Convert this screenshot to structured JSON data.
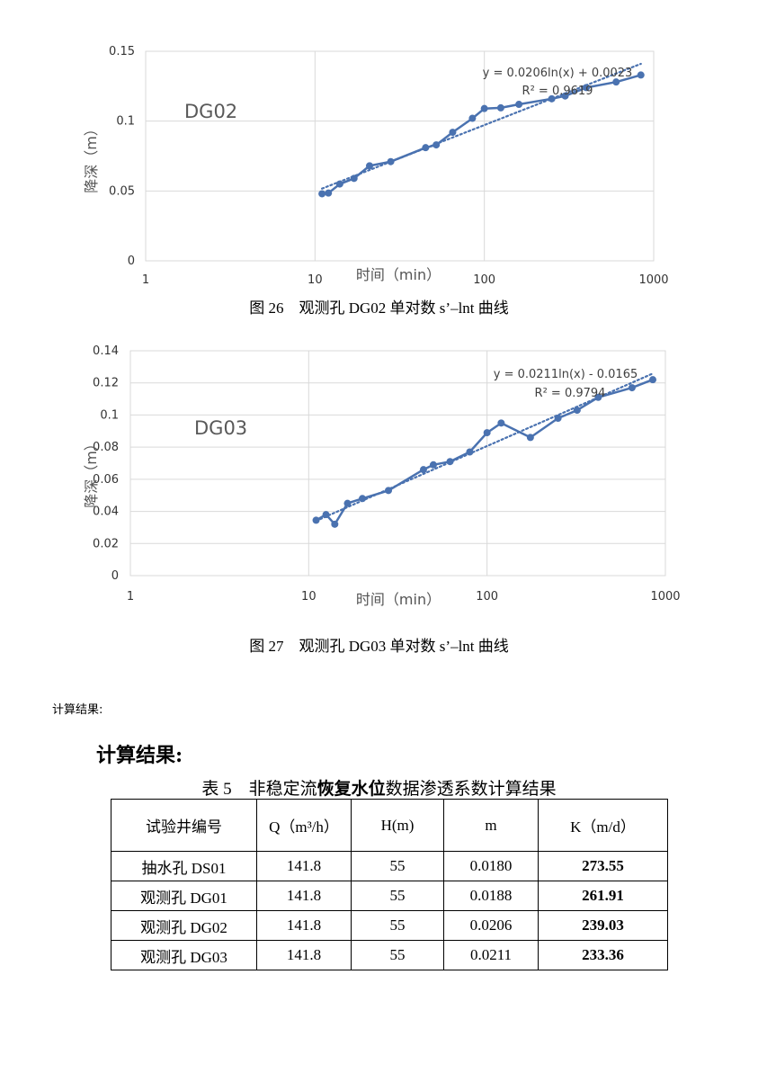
{
  "chart_data": [
    {
      "type": "scatter",
      "label": "DG02",
      "xlabel": "时间（min）",
      "ylabel": "降深（m）",
      "xscale": "log",
      "xlim": [
        1,
        1000
      ],
      "ylim": [
        0,
        0.15
      ],
      "xticks": [
        1,
        10,
        100,
        1000
      ],
      "xtick_labels": [
        "1",
        "10",
        "100",
        "1000"
      ],
      "yticks": [
        0,
        0.05,
        0.1,
        0.15
      ],
      "ytick_labels": [
        "0",
        "0.05",
        "0.1",
        "0.15"
      ],
      "grid": true,
      "trendline": {
        "type": "log",
        "a": 0.0206,
        "b": 0.0023,
        "equation": "y = 0.0206ln(x) + 0.0023",
        "r2": "R² = 0.9619"
      },
      "series": [
        {
          "x": [
            11,
            12,
            14,
            17,
            21,
            28,
            45,
            52,
            65,
            85,
            100,
            125,
            160,
            250,
            300,
            400,
            600,
            840
          ],
          "y": [
            0.048,
            0.0485,
            0.055,
            0.059,
            0.068,
            0.071,
            0.081,
            0.083,
            0.092,
            0.102,
            0.109,
            0.1095,
            0.112,
            0.116,
            0.118,
            0.124,
            0.128,
            0.133
          ]
        }
      ],
      "color": "#4a72b0"
    },
    {
      "type": "scatter",
      "label": "DG03",
      "xlabel": "时间（min）",
      "ylabel": "降深（m）",
      "xscale": "log",
      "xlim": [
        1,
        1000
      ],
      "ylim": [
        0,
        0.14
      ],
      "xticks": [
        1,
        10,
        100,
        1000
      ],
      "xtick_labels": [
        "1",
        "10",
        "100",
        "1000"
      ],
      "yticks": [
        0,
        0.02,
        0.04,
        0.06,
        0.08,
        0.1,
        0.12,
        0.14
      ],
      "ytick_labels": [
        "0",
        "0.02",
        "0.04",
        "0.06",
        "0.08",
        "0.1",
        "0.12",
        "0.14"
      ],
      "grid": true,
      "trendline": {
        "type": "log",
        "a": 0.0211,
        "b": -0.0165,
        "equation": "y = 0.0211ln(x) - 0.0165",
        "r2": "R² = 0.9794"
      },
      "series": [
        {
          "x": [
            11,
            12.5,
            14,
            16.5,
            20,
            28,
            44,
            50,
            62,
            80,
            100,
            120,
            175,
            250,
            320,
            420,
            650,
            850
          ],
          "y": [
            0.0345,
            0.038,
            0.032,
            0.045,
            0.048,
            0.053,
            0.066,
            0.069,
            0.071,
            0.077,
            0.089,
            0.095,
            0.086,
            0.098,
            0.103,
            0.111,
            0.117,
            0.122
          ]
        }
      ],
      "color": "#4a72b0"
    }
  ],
  "captions": {
    "fig26": "图 26　观测孔 DG02 单对数 s’–lnt 曲线",
    "fig27": "图 27　观测孔 DG03 单对数 s’–lnt 曲线"
  },
  "small_heading": "计算结果:",
  "big_heading": "计算结果:",
  "table": {
    "title_prefix": "表 5　非稳定流",
    "title_bold": "恢复水位",
    "title_suffix": "数据渗透系数计算结果",
    "headers": [
      "试验井编号",
      "Q（m³/h）",
      "H(m)",
      "m",
      "K（m/d）"
    ],
    "rows": [
      [
        "抽水孔 DS01",
        "141.8",
        "55",
        "0.0180",
        "273.55"
      ],
      [
        "观测孔 DG01",
        "141.8",
        "55",
        "0.0188",
        "261.91"
      ],
      [
        "观测孔 DG02",
        "141.8",
        "55",
        "0.0206",
        "239.03"
      ],
      [
        "观测孔 DG03",
        "141.8",
        "55",
        "0.0211",
        "233.36"
      ]
    ]
  }
}
